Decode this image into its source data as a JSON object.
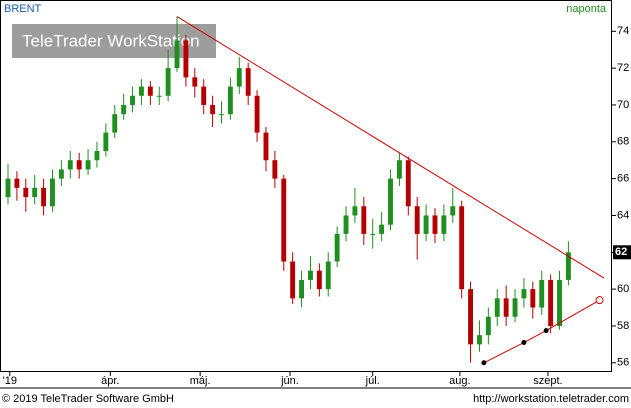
{
  "chart_data": {
    "type": "candlestick",
    "title": "BRENT",
    "interval": "naponta",
    "watermark": "TeleTrader WorkStation",
    "footer_left": "© 2019 TeleTrader Software GmbH",
    "footer_right": "http://workstation.teletrader.com",
    "up_color": "#1f8f1f",
    "down_color": "#b40000",
    "grid": false,
    "open": [
      65,
      66,
      65.5,
      65,
      65.5,
      64.5,
      66,
      66.5,
      67,
      66.5,
      67,
      67.5,
      68.5,
      69.5,
      70,
      70.5,
      71,
      70.5,
      70.5,
      72,
      73.5,
      71.5,
      71,
      70,
      69.5,
      69.5,
      71,
      72,
      70.5,
      68.5,
      67,
      66,
      61.5,
      59.5,
      60.5,
      61,
      60,
      61.5,
      63,
      64,
      64.5,
      63,
      63,
      63.5,
      66,
      67,
      64.5,
      63,
      64,
      63,
      64,
      64.5,
      60,
      57,
      57.5,
      58.5,
      59.5,
      58.5,
      59.5,
      60,
      59,
      60.5,
      58,
      60.5
    ],
    "high": [
      66.8,
      66.4,
      66,
      66.2,
      66,
      66.5,
      67,
      67.5,
      67.4,
      67.6,
      68,
      69,
      70,
      70.6,
      71,
      71.4,
      71.3,
      71,
      73,
      74.8,
      73.8,
      72,
      71.4,
      70.5,
      70.2,
      71.5,
      72.6,
      72.3,
      70.8,
      68.8,
      67.5,
      66.2,
      62,
      61,
      61.8,
      61.4,
      62,
      63.4,
      64.5,
      65.5,
      65,
      63.8,
      64.2,
      66.5,
      67.4,
      67.2,
      65,
      64.6,
      64.4,
      64.6,
      65.5,
      64.8,
      60.4,
      58.3,
      59,
      60,
      60.2,
      60,
      60.6,
      60.4,
      61,
      60.8,
      61,
      62.6
    ],
    "low": [
      64.6,
      64.8,
      64.2,
      64.6,
      64,
      64.2,
      65.6,
      66,
      66,
      66.2,
      66.6,
      67.2,
      68.2,
      69.2,
      69.6,
      70,
      70,
      70,
      70.2,
      71.8,
      71,
      70.4,
      69.5,
      68.8,
      69,
      69.2,
      70.6,
      70,
      68,
      66.4,
      65.5,
      61,
      59.2,
      59,
      60,
      59.6,
      59.6,
      61.2,
      62.6,
      63.6,
      62.4,
      62.2,
      62.6,
      63.2,
      65.6,
      64,
      61.6,
      62.6,
      62.5,
      62.6,
      63.6,
      59.5,
      56,
      56.6,
      57,
      58,
      58,
      58.2,
      59,
      58.4,
      58.6,
      57.6,
      57.8,
      60.2
    ],
    "close": [
      66,
      65.5,
      65,
      65.5,
      64.5,
      66,
      66.5,
      67,
      66.5,
      67,
      67.5,
      68.5,
      69.5,
      70,
      70.5,
      71,
      70.5,
      70.5,
      72,
      73.5,
      71.5,
      71,
      70,
      69.5,
      69.5,
      71,
      72,
      70.5,
      68.5,
      67,
      66,
      61.5,
      59.5,
      60.5,
      61,
      60,
      61.5,
      63,
      64,
      64.5,
      63,
      63,
      63.5,
      66,
      67,
      64.5,
      63,
      64,
      63,
      64,
      64.5,
      60,
      57,
      57.5,
      58.5,
      59.5,
      58.5,
      59.5,
      60,
      59,
      60.5,
      58,
      60.5,
      62
    ],
    "last_price": 62,
    "xlim": [
      -0.9,
      67.9
    ],
    "xticks": [
      {
        "value": 0.2,
        "label": "'19"
      },
      {
        "value": 11.5,
        "label": "ápr."
      },
      {
        "value": 21.6,
        "label": "máj."
      },
      {
        "value": 31.7,
        "label": "jún."
      },
      {
        "value": 41,
        "label": "júl."
      },
      {
        "value": 50.8,
        "label": "aug."
      },
      {
        "value": 60.7,
        "label": "szept."
      }
    ],
    "ylim": [
      55.5,
      75.7
    ],
    "yticks": [
      56,
      58,
      60,
      62,
      64,
      66,
      68,
      70,
      72,
      74
    ],
    "trendlines": [
      {
        "color": "#d00000",
        "x": [
          19,
          67
        ],
        "y": [
          74.8,
          60.6
        ]
      },
      {
        "color": "#d00000",
        "x": [
          53.5,
          58,
          60.5,
          66.5
        ],
        "y": [
          56,
          57.1,
          57.75,
          59.4
        ]
      }
    ]
  }
}
